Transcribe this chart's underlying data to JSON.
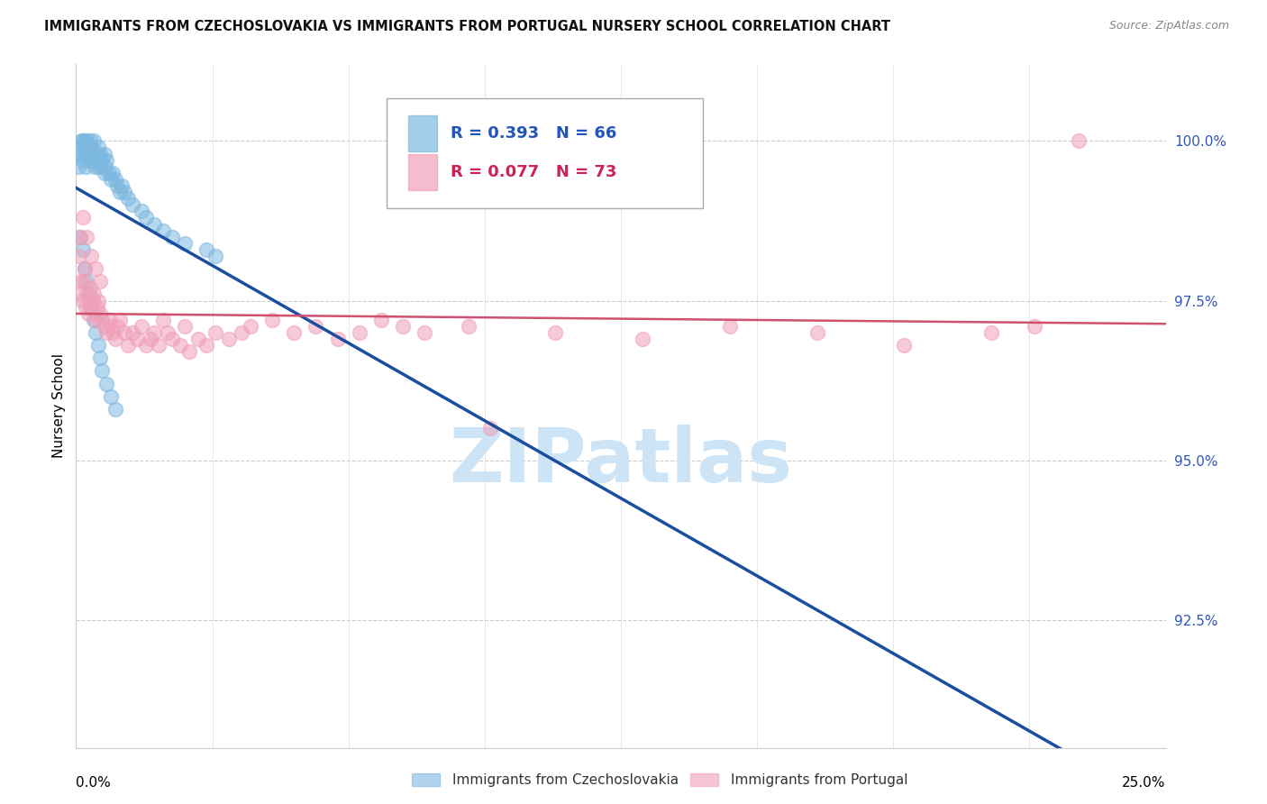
{
  "title": "IMMIGRANTS FROM CZECHOSLOVAKIA VS IMMIGRANTS FROM PORTUGAL NURSERY SCHOOL CORRELATION CHART",
  "source": "Source: ZipAtlas.com",
  "ylabel": "Nursery School",
  "yticks": [
    92.5,
    95.0,
    97.5,
    100.0
  ],
  "ytick_labels": [
    "92.5%",
    "95.0%",
    "97.5%",
    "100.0%"
  ],
  "xmin": 0.0,
  "xmax": 25.0,
  "ymin": 90.5,
  "ymax": 101.2,
  "legend_blue_label": "Immigrants from Czechoslovakia",
  "legend_pink_label": "Immigrants from Portugal",
  "R_blue": 0.393,
  "N_blue": 66,
  "R_pink": 0.077,
  "N_pink": 73,
  "blue_color": "#7db8e0",
  "pink_color": "#f0a0b8",
  "blue_line_color": "#1a4fa0",
  "pink_line_color": "#d05070",
  "watermark_text": "ZIPatlas",
  "watermark_color": "#cce4f5",
  "blue_scatter_x": [
    0.05,
    0.08,
    0.1,
    0.12,
    0.15,
    0.15,
    0.18,
    0.2,
    0.2,
    0.22,
    0.25,
    0.25,
    0.28,
    0.3,
    0.3,
    0.32,
    0.35,
    0.35,
    0.38,
    0.4,
    0.4,
    0.42,
    0.45,
    0.48,
    0.5,
    0.5,
    0.52,
    0.55,
    0.58,
    0.6,
    0.65,
    0.65,
    0.68,
    0.7,
    0.75,
    0.8,
    0.85,
    0.9,
    0.95,
    1.0,
    1.05,
    1.1,
    1.2,
    1.3,
    1.5,
    1.6,
    1.8,
    2.0,
    2.2,
    2.5,
    3.0,
    3.2,
    0.1,
    0.15,
    0.2,
    0.25,
    0.3,
    0.35,
    0.4,
    0.45,
    0.5,
    0.55,
    0.6,
    0.7,
    0.8,
    0.9
  ],
  "blue_scatter_y": [
    99.6,
    99.8,
    99.9,
    100.0,
    100.0,
    99.7,
    99.8,
    99.9,
    100.0,
    99.6,
    99.8,
    100.0,
    99.7,
    99.8,
    99.9,
    100.0,
    99.8,
    99.9,
    99.7,
    99.8,
    100.0,
    99.6,
    99.7,
    99.8,
    99.6,
    99.9,
    99.7,
    99.8,
    99.6,
    99.7,
    99.5,
    99.8,
    99.6,
    99.7,
    99.5,
    99.4,
    99.5,
    99.4,
    99.3,
    99.2,
    99.3,
    99.2,
    99.1,
    99.0,
    98.9,
    98.8,
    98.7,
    98.6,
    98.5,
    98.4,
    98.3,
    98.2,
    98.5,
    98.3,
    98.0,
    97.8,
    97.6,
    97.4,
    97.2,
    97.0,
    96.8,
    96.6,
    96.4,
    96.2,
    96.0,
    95.8
  ],
  "pink_scatter_x": [
    0.05,
    0.08,
    0.1,
    0.12,
    0.15,
    0.18,
    0.2,
    0.22,
    0.25,
    0.28,
    0.3,
    0.32,
    0.35,
    0.38,
    0.4,
    0.42,
    0.45,
    0.48,
    0.5,
    0.55,
    0.6,
    0.65,
    0.7,
    0.75,
    0.8,
    0.85,
    0.9,
    0.95,
    1.0,
    1.1,
    1.2,
    1.3,
    1.4,
    1.5,
    1.6,
    1.7,
    1.8,
    1.9,
    2.0,
    2.1,
    2.2,
    2.4,
    2.5,
    2.6,
    2.8,
    3.0,
    3.2,
    3.5,
    3.8,
    4.0,
    4.5,
    5.0,
    5.5,
    6.0,
    6.5,
    7.0,
    7.5,
    8.0,
    9.0,
    9.5,
    11.0,
    13.0,
    15.0,
    17.0,
    19.0,
    21.0,
    22.0,
    23.0,
    0.15,
    0.25,
    0.35,
    0.45,
    0.55
  ],
  "pink_scatter_y": [
    98.2,
    98.5,
    97.8,
    97.6,
    97.5,
    97.8,
    98.0,
    97.4,
    97.6,
    97.3,
    97.5,
    97.7,
    97.4,
    97.5,
    97.6,
    97.3,
    97.2,
    97.4,
    97.5,
    97.3,
    97.2,
    97.1,
    97.0,
    97.2,
    97.1,
    97.0,
    96.9,
    97.1,
    97.2,
    97.0,
    96.8,
    97.0,
    96.9,
    97.1,
    96.8,
    96.9,
    97.0,
    96.8,
    97.2,
    97.0,
    96.9,
    96.8,
    97.1,
    96.7,
    96.9,
    96.8,
    97.0,
    96.9,
    97.0,
    97.1,
    97.2,
    97.0,
    97.1,
    96.9,
    97.0,
    97.2,
    97.1,
    97.0,
    97.1,
    95.5,
    97.0,
    96.9,
    97.1,
    97.0,
    96.8,
    97.0,
    97.1,
    100.0,
    98.8,
    98.5,
    98.2,
    98.0,
    97.8
  ]
}
